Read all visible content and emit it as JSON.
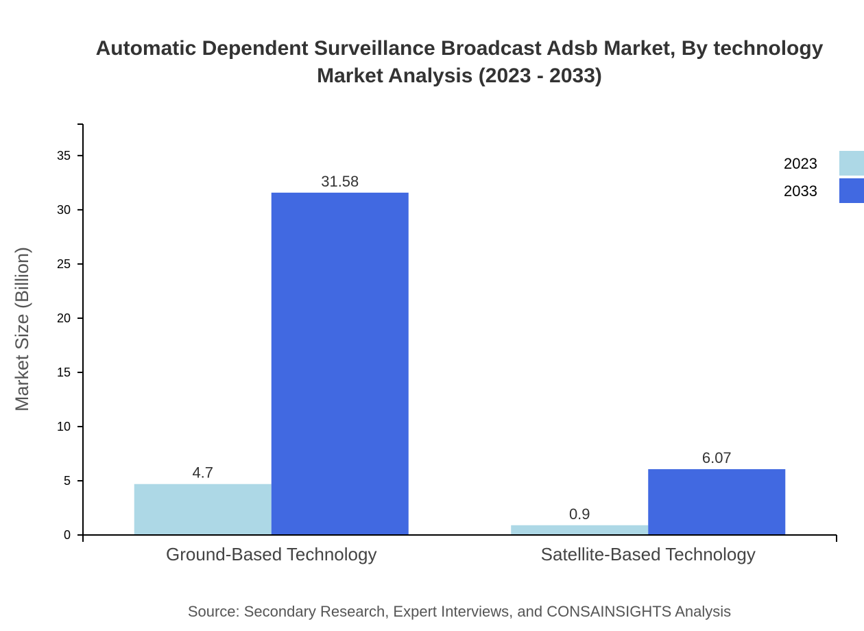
{
  "chart_data": {
    "type": "bar",
    "title": [
      "Automatic Dependent Surveillance Broadcast Adsb Market, By technology",
      "Market Analysis (2023 - 2033)"
    ],
    "xlabel": "",
    "ylabel": "Market Size (Billion)",
    "categories": [
      "Ground-Based Technology",
      "Satellite-Based Technology"
    ],
    "series": [
      {
        "name": "2023",
        "values": [
          4.7,
          0.9
        ],
        "color": "#add8e6"
      },
      {
        "name": "2033",
        "values": [
          31.58,
          6.07
        ],
        "color": "#4169e1"
      }
    ],
    "ylim": [
      0,
      37.9
    ],
    "yticks": [
      0,
      5,
      10,
      15,
      20,
      25,
      30,
      35
    ],
    "grid": false,
    "legend": "top-right",
    "source": "Source: Secondary Research, Expert Interviews, and CONSAINSIGHTS Analysis"
  }
}
